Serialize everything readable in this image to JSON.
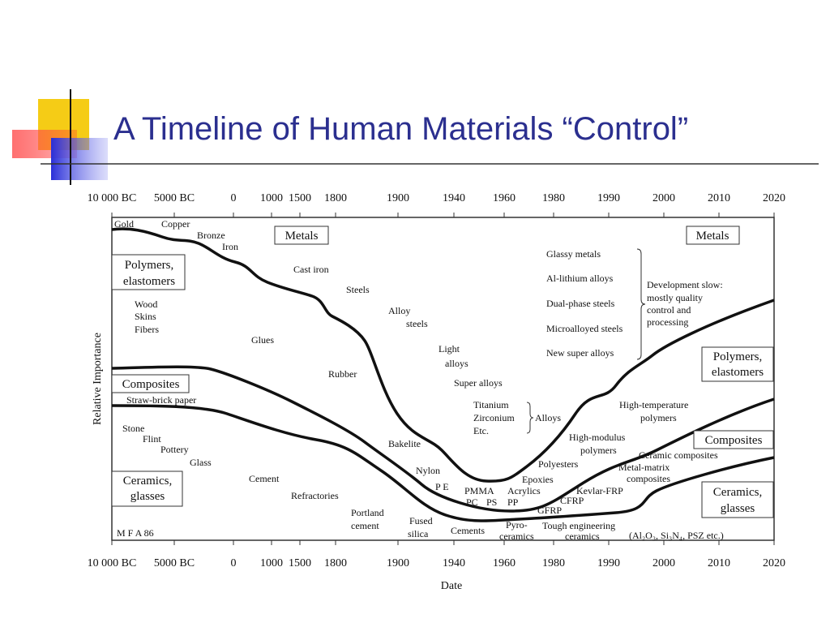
{
  "title": "A Timeline of Human Materials “Control”",
  "figure": {
    "x_labels": [
      "10 000 BC",
      "5000 BC",
      "0",
      "1000",
      "1500",
      "1800",
      "1900",
      "1940",
      "1960",
      "1980",
      "1990",
      "2000",
      "2010",
      "2020"
    ],
    "y_axis_label": "Relative Importance",
    "x_axis_label": "Date",
    "labels": [
      "Gold",
      "Copper",
      "Bronze",
      "Iron",
      "Metals",
      "Polymers,",
      "elastomers",
      "Wood",
      "Skins",
      "Fibers",
      "Cast iron",
      "Steels",
      "Alloy",
      "steels",
      "Glues",
      "Light",
      "alloys",
      "Rubber",
      "Super alloys",
      "Composites",
      "Straw-brick paper",
      "Titanium",
      "Zirconium",
      "Etc.",
      "Alloys",
      "Stone",
      "Flint",
      "Pottery",
      "Glass",
      "Bakelite",
      "Cement",
      "Ceramics,",
      "glasses",
      "Refractories",
      "Nylon",
      "P E",
      "PMMA",
      "PC",
      "PS",
      "Acrylics",
      "PP",
      "Portland",
      "cement",
      "Fused",
      "silica",
      "Cements",
      "Pyro-",
      "ceramics",
      "Tough engineering",
      "ceramics",
      "(Al₂O₃, Si₃N₄, PSZ etc.)",
      "M F A 86",
      "Glassy metals",
      "Al-lithium alloys",
      "Dual-phase steels",
      "Microalloyed steels",
      "New super alloys",
      "Development slow:",
      "mostly quality",
      "control and",
      "processing",
      "Metals",
      "Polymers,",
      "elastomers",
      "High-temperature",
      "polymers",
      "High-modulus",
      "polymers",
      "Polyesters",
      "Ceramic composites",
      "Metal-matrix",
      "composites",
      "Composites",
      "Epoxies",
      "Kevlar-FRP",
      "CFRP",
      "GFRP",
      "Ceramics,",
      "glasses"
    ]
  }
}
